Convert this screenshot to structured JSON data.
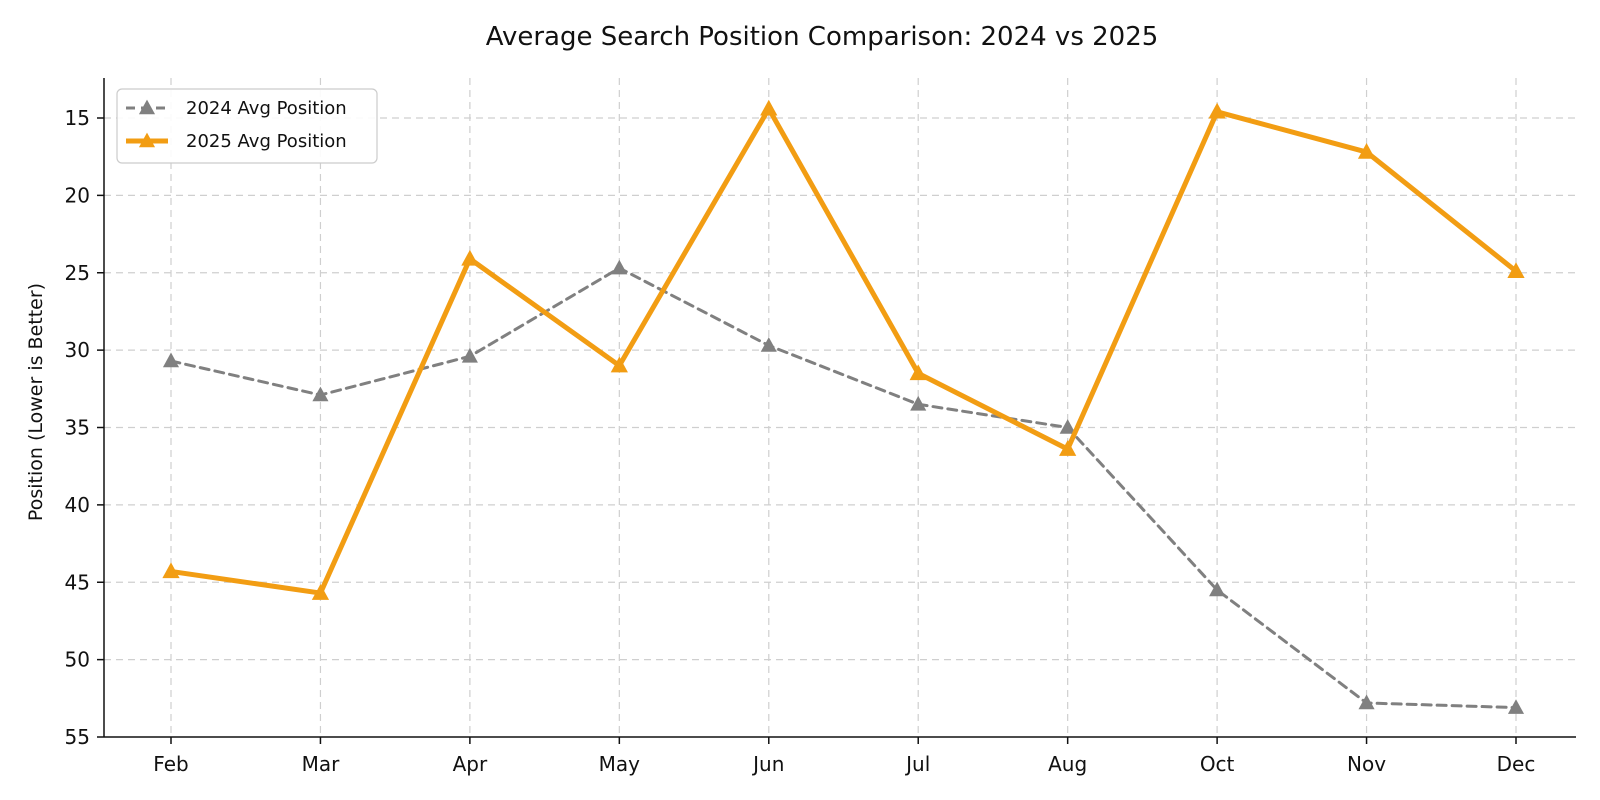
{
  "chart_data": {
    "type": "line",
    "title": "Average Search Position Comparison: 2024 vs 2025",
    "xlabel": "",
    "ylabel": "Position (Lower is Better)",
    "categories": [
      "Feb",
      "Mar",
      "Apr",
      "May",
      "Jun",
      "Jul",
      "Aug",
      "Oct",
      "Nov",
      "Dec"
    ],
    "ylim": [
      55,
      12.5
    ],
    "y_inverted": true,
    "yticks": [
      15,
      20,
      25,
      30,
      35,
      40,
      45,
      50,
      55
    ],
    "grid": true,
    "legend_position": "top-left",
    "series": [
      {
        "name": "2024 Avg Position",
        "values": [
          30.7,
          32.9,
          30.4,
          24.7,
          29.7,
          33.5,
          35.0,
          45.5,
          52.8,
          53.1
        ],
        "color": "#808080",
        "line_style": "dashed",
        "marker": "triangle"
      },
      {
        "name": "2025 Avg Position",
        "values": [
          44.3,
          45.7,
          24.1,
          31.0,
          14.4,
          31.5,
          36.4,
          14.6,
          17.2,
          24.9
        ],
        "color": "#f29d13",
        "line_style": "solid",
        "marker": "triangle"
      }
    ]
  }
}
